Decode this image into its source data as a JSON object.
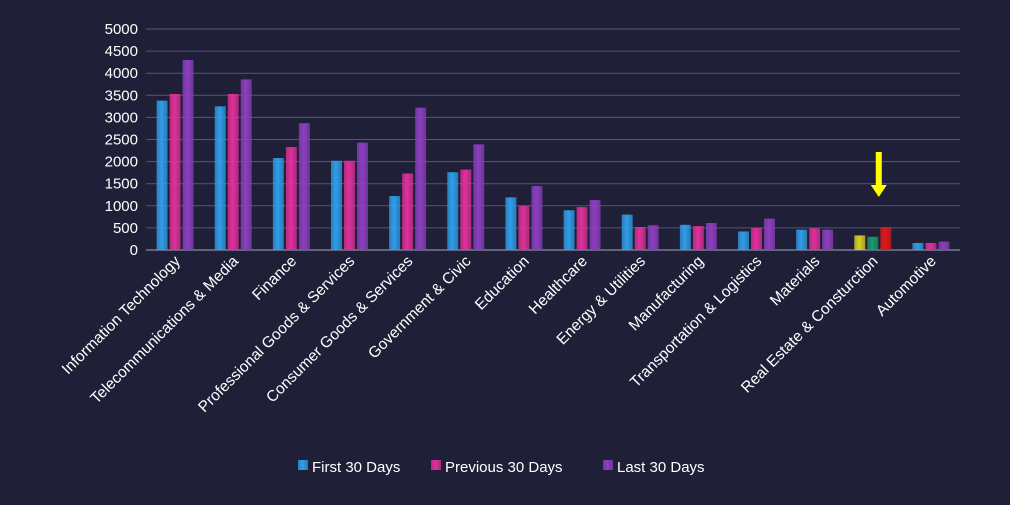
{
  "chart_data": {
    "type": "bar",
    "categories": [
      "Information Technology",
      "Telecommunications & Media",
      "Finance",
      "Professional Goods & Services",
      "Consumer Goods &  Services",
      "Government & Civic",
      "Education",
      "Healthcare",
      "Energy & Utilities",
      "Manufacturing",
      "Transportation & Logistics",
      "Materials",
      "Real Estate & Consturction",
      "Automotive"
    ],
    "series": [
      {
        "name": "First 30 Days",
        "color": "#2f9ee8",
        "values": [
          3380,
          3250,
          2080,
          2020,
          1220,
          1760,
          1190,
          900,
          800,
          570,
          420,
          460,
          330,
          160
        ]
      },
      {
        "name": "Previous 30 Days",
        "color": "#e0309a",
        "values": [
          3530,
          3530,
          2330,
          2020,
          1730,
          1820,
          1000,
          970,
          520,
          540,
          500,
          490,
          300,
          160
        ]
      },
      {
        "name": "Last 30 Days",
        "color": "#8c3fbf",
        "values": [
          4300,
          3860,
          2870,
          2430,
          3220,
          2390,
          1450,
          1130,
          560,
          610,
          710,
          460,
          520,
          190
        ]
      }
    ],
    "highlight": {
      "category": "Real Estate & Consturction",
      "bar_colors": [
        "#d8d020",
        "#1a9a6a",
        "#e01818"
      ],
      "arrow_color": "#ffff00"
    },
    "ylim": [
      0,
      5000
    ],
    "yticks": [
      0,
      500,
      1000,
      1500,
      2000,
      2500,
      3000,
      3500,
      4000,
      4500,
      5000
    ],
    "grid": true,
    "legend_position": "bottom",
    "title": "",
    "xlabel": "",
    "ylabel": ""
  }
}
